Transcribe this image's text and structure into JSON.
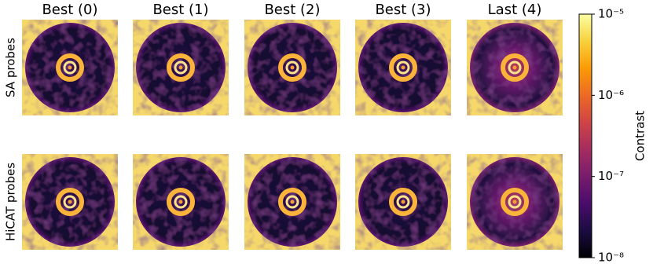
{
  "chart_data": {
    "type": "image-grid",
    "columns": [
      "Best (0)",
      "Best (1)",
      "Best (2)",
      "Best (3)",
      "Last (4)"
    ],
    "rows": [
      "SA probes",
      "HiCAT probes"
    ],
    "colorbar": {
      "label": "Contrast",
      "scale": "log",
      "lim": [
        1e-08,
        1e-05
      ],
      "ticks": [
        {
          "value": 1e-08,
          "label": "10⁻⁸"
        },
        {
          "value": 1e-07,
          "label": "10⁻⁷"
        },
        {
          "value": 1e-06,
          "label": "10⁻⁶"
        },
        {
          "value": 1e-05,
          "label": "10⁻⁵"
        }
      ],
      "colormap": "inferno"
    }
  }
}
